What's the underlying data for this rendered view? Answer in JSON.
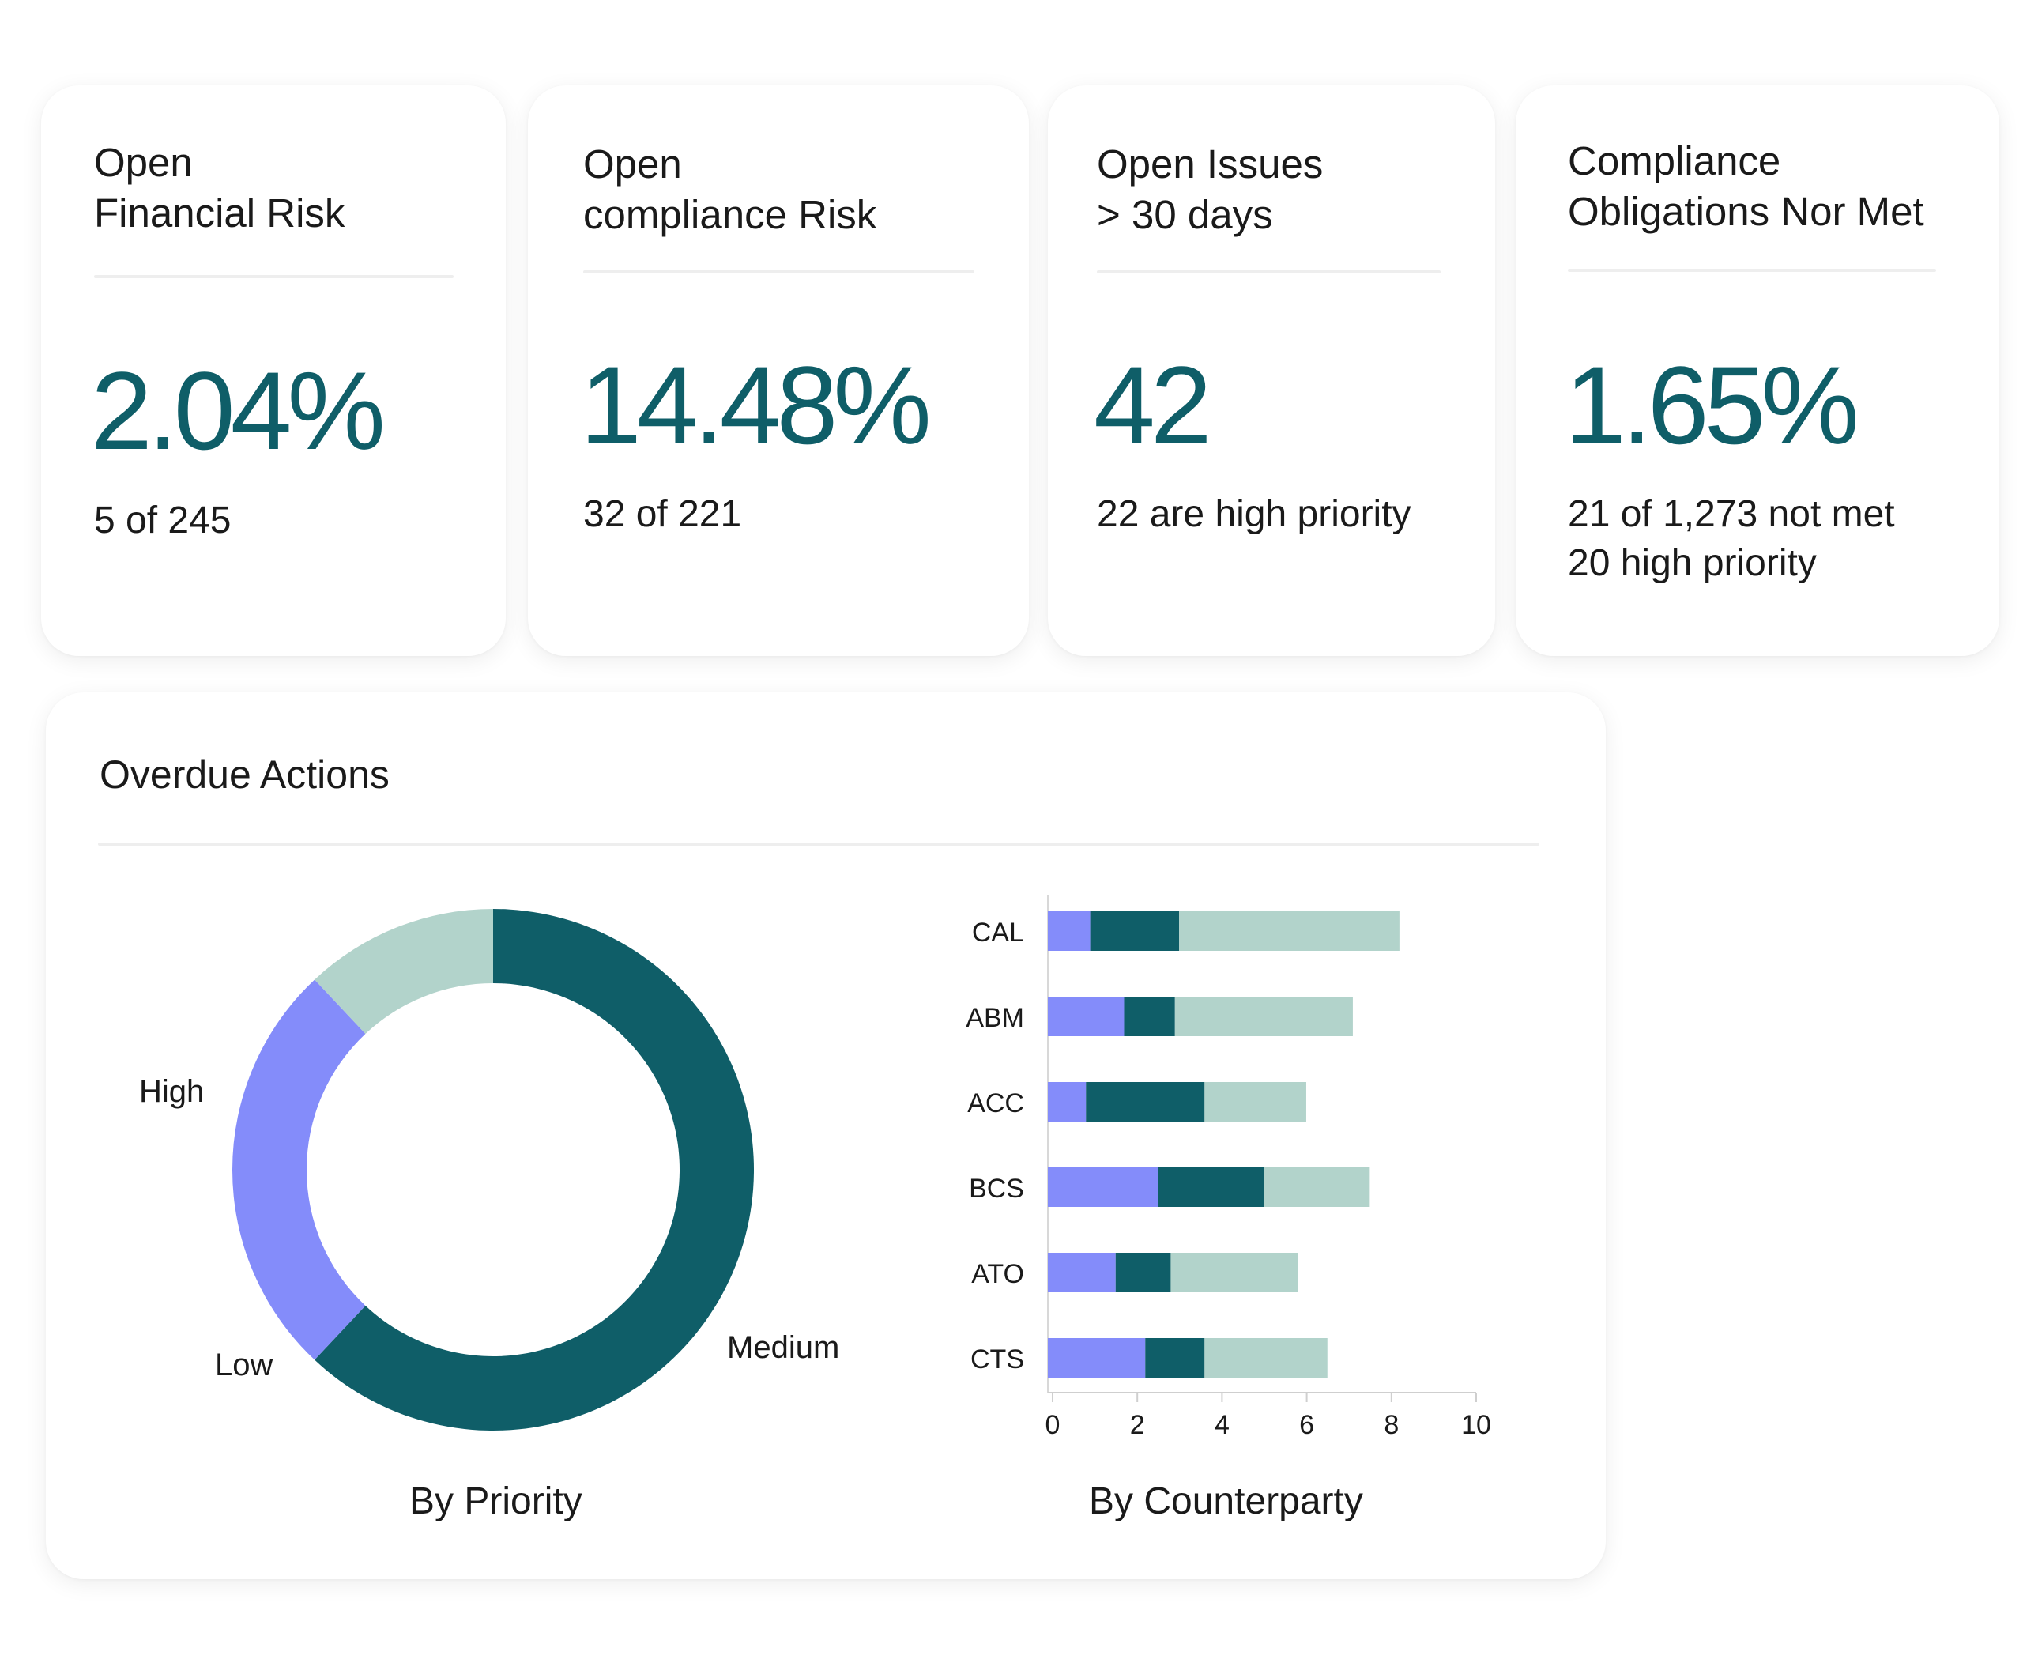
{
  "colors": {
    "accent": "#0f5e68",
    "high": "#b2d3cb",
    "medium": "#0f5e68",
    "low": "#848cfa"
  },
  "kpis": [
    {
      "title_line1": "Open",
      "title_line2": "Financial Risk",
      "value": "2.04%",
      "sub_line1": "5 of 245",
      "sub_line2": ""
    },
    {
      "title_line1": "Open",
      "title_line2": "compliance Risk",
      "value": "14.48%",
      "sub_line1": "32 of 221",
      "sub_line2": ""
    },
    {
      "title_line1": "Open Issues",
      "title_line2": "> 30 days",
      "value": "42",
      "sub_line1": "22 are high priority",
      "sub_line2": ""
    },
    {
      "title_line1": "Compliance",
      "title_line2": "Obligations Nor Met",
      "value": "1.65%",
      "sub_line1": "21 of 1,273 not met",
      "sub_line2": "20 high priority"
    }
  ],
  "overdue": {
    "title": "Overdue Actions",
    "priority_caption": "By Priority",
    "counterparty_caption": "By Counterparty"
  },
  "chart_data": [
    {
      "type": "pie",
      "variant": "donut",
      "caption": "By Priority",
      "slices": [
        {
          "label": "Medium",
          "value": 62,
          "color": "#0f5e68"
        },
        {
          "label": "Low",
          "value": 26,
          "color": "#848cfa"
        },
        {
          "label": "High",
          "value": 12,
          "color": "#b2d3cb"
        }
      ]
    },
    {
      "type": "bar",
      "orientation": "horizontal",
      "stacked": true,
      "caption": "By Counterparty",
      "categories": [
        "CAL",
        "ABM",
        "ACC",
        "BCS",
        "ATO",
        "CTS"
      ],
      "series": [
        {
          "key": "low",
          "color": "#848cfa",
          "values": [
            1.0,
            1.8,
            0.9,
            2.6,
            1.6,
            2.3
          ]
        },
        {
          "key": "medium",
          "color": "#0f5e68",
          "values": [
            2.1,
            1.2,
            2.8,
            2.5,
            1.3,
            1.4
          ]
        },
        {
          "key": "high",
          "color": "#b2d3cb",
          "values": [
            5.2,
            4.2,
            2.4,
            2.5,
            3.0,
            2.9
          ]
        }
      ],
      "xlim": [
        0,
        10
      ],
      "xticks": [
        "0",
        "2",
        "4",
        "6",
        "8",
        "10"
      ],
      "grid": false
    }
  ]
}
